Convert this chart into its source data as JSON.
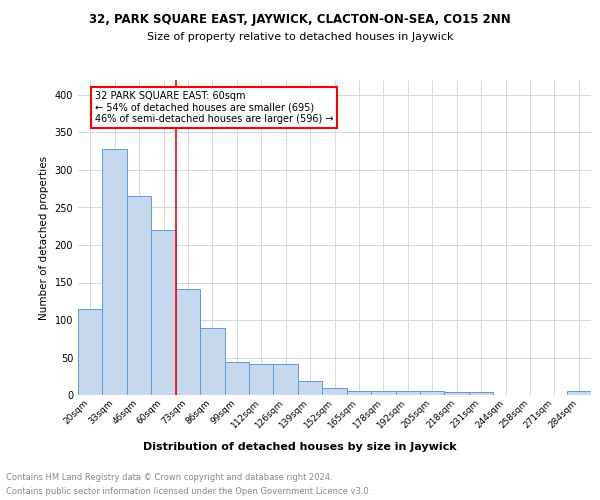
{
  "title1": "32, PARK SQUARE EAST, JAYWICK, CLACTON-ON-SEA, CO15 2NN",
  "title2": "Size of property relative to detached houses in Jaywick",
  "xlabel": "Distribution of detached houses by size in Jaywick",
  "ylabel": "Number of detached properties",
  "annotation_line1": "32 PARK SQUARE EAST: 60sqm",
  "annotation_line2": "← 54% of detached houses are smaller (695)",
  "annotation_line3": "46% of semi-detached houses are larger (596) →",
  "footnote1": "Contains HM Land Registry data © Crown copyright and database right 2024.",
  "footnote2": "Contains public sector information licensed under the Open Government Licence v3.0.",
  "categories": [
    "20sqm",
    "33sqm",
    "46sqm",
    "60sqm",
    "73sqm",
    "86sqm",
    "99sqm",
    "112sqm",
    "126sqm",
    "139sqm",
    "152sqm",
    "165sqm",
    "178sqm",
    "192sqm",
    "205sqm",
    "218sqm",
    "231sqm",
    "244sqm",
    "258sqm",
    "271sqm",
    "284sqm"
  ],
  "values": [
    115,
    328,
    265,
    220,
    142,
    90,
    44,
    42,
    42,
    19,
    9,
    6,
    6,
    6,
    6,
    4,
    4,
    0,
    0,
    0,
    5
  ],
  "bar_color": "#c5d8ed",
  "bar_edge_color": "#5b9bd5",
  "red_line_index": 3,
  "ylim": [
    0,
    420
  ],
  "background_color": "#ffffff",
  "grid_color": "#d0d8e8"
}
